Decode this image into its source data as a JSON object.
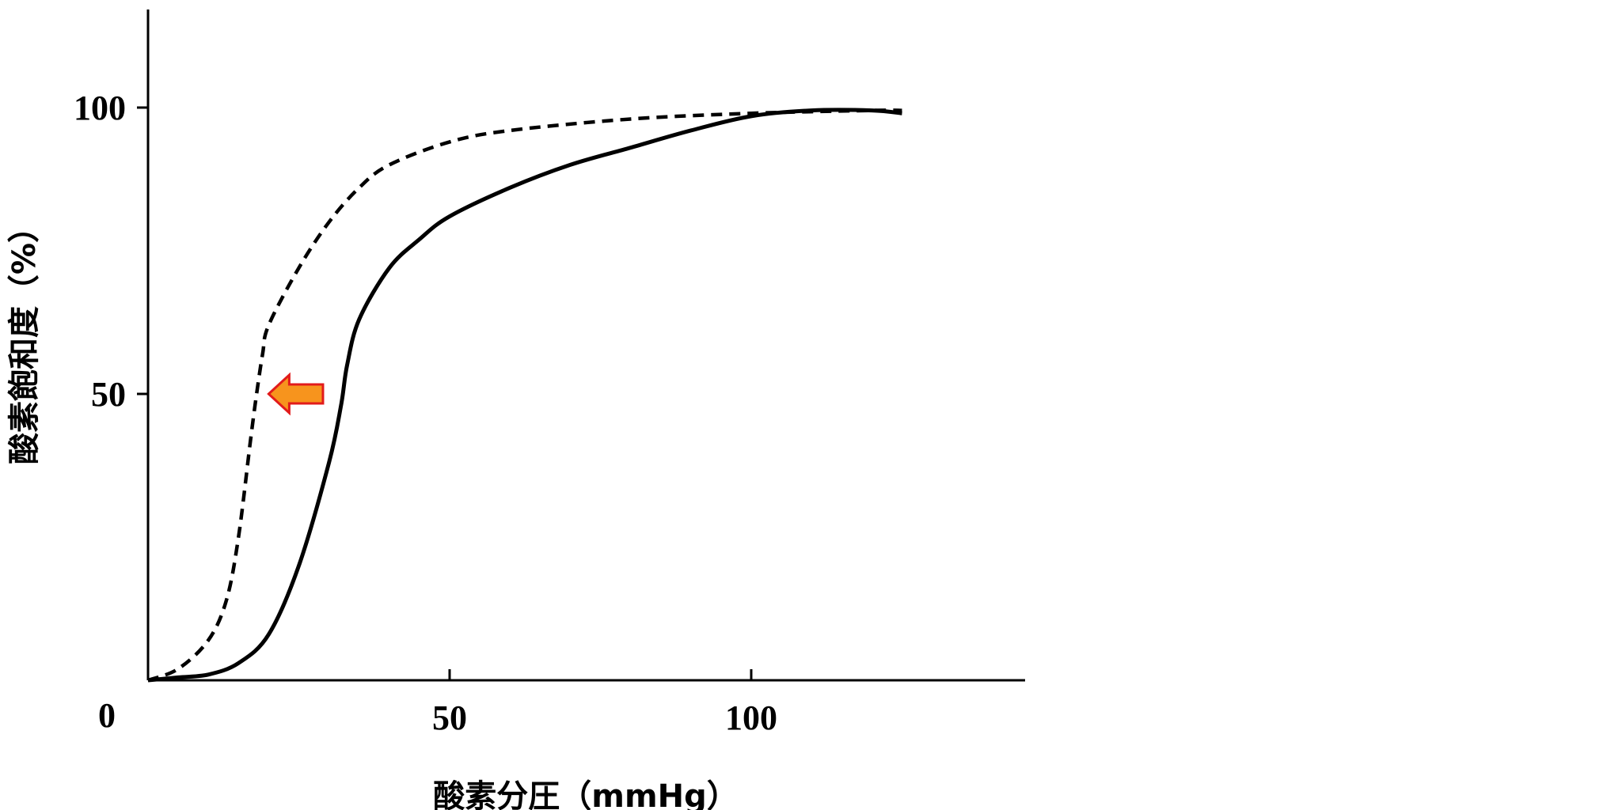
{
  "chart_data": {
    "type": "line",
    "title": "",
    "xlabel": "酸素分圧（mmHg）",
    "ylabel": "酸素飽和度（%）",
    "xlim": [
      0,
      145
    ],
    "ylim": [
      0,
      117
    ],
    "origin_label": "0",
    "x_ticks": [
      {
        "value": 50,
        "label": "50"
      },
      {
        "value": 100,
        "label": "100"
      }
    ],
    "y_ticks": [
      {
        "value": 50,
        "label": "50"
      },
      {
        "value": 100,
        "label": "100"
      }
    ],
    "grid": false,
    "legend": false,
    "series": [
      {
        "style": "solid",
        "points": [
          [
            0,
            0
          ],
          [
            5,
            0.5
          ],
          [
            10,
            1
          ],
          [
            15,
            3
          ],
          [
            20,
            8
          ],
          [
            25,
            20
          ],
          [
            30,
            38
          ],
          [
            32,
            48
          ],
          [
            33,
            55
          ],
          [
            35,
            63
          ],
          [
            40,
            72
          ],
          [
            45,
            77
          ],
          [
            50,
            81
          ],
          [
            60,
            86
          ],
          [
            70,
            90
          ],
          [
            80,
            93
          ],
          [
            90,
            96
          ],
          [
            100,
            98.5
          ],
          [
            110,
            99.5
          ],
          [
            120,
            99.5
          ],
          [
            125,
            99
          ]
        ]
      },
      {
        "style": "dashed",
        "points": [
          [
            0,
            0
          ],
          [
            5,
            2
          ],
          [
            10,
            7
          ],
          [
            13,
            14
          ],
          [
            15,
            25
          ],
          [
            17,
            42
          ],
          [
            18,
            50
          ],
          [
            19,
            57
          ],
          [
            20,
            62
          ],
          [
            25,
            72
          ],
          [
            30,
            80
          ],
          [
            35,
            86
          ],
          [
            40,
            90
          ],
          [
            50,
            94
          ],
          [
            60,
            96
          ],
          [
            80,
            98
          ],
          [
            100,
            99
          ],
          [
            120,
            99.5
          ],
          [
            125,
            99.5
          ]
        ]
      }
    ],
    "annotations": [
      {
        "type": "arrow",
        "direction": "left",
        "y": 50,
        "x_from": 29,
        "x_to": 20,
        "fill": "#f7941d",
        "stroke": "#e21b1b"
      }
    ],
    "colors": {
      "line": "#000000",
      "arrow_fill": "#f7941d",
      "arrow_stroke": "#e21b1b"
    }
  }
}
